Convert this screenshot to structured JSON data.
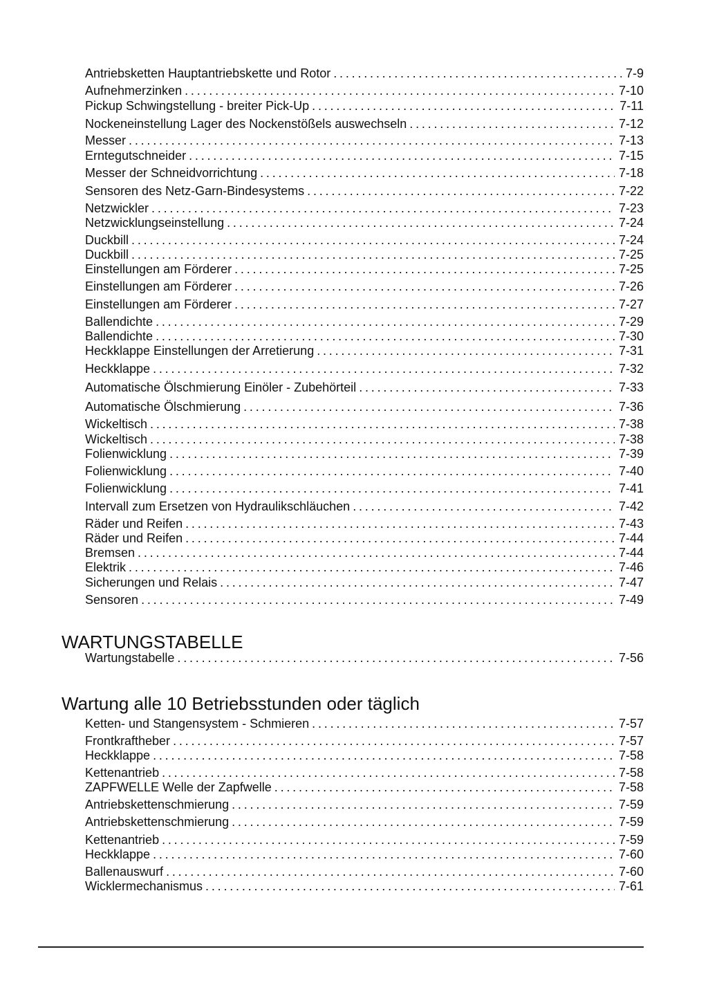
{
  "sections": [
    {
      "heading": "",
      "entries": [
        {
          "label": "Antriebsketten Hauptantriebskette und Rotor",
          "page": "7-9"
        },
        {
          "label": "Aufnehmerzinken",
          "page": "7-10"
        },
        {
          "label": "Pickup Schwingstellung - breiter Pick-Up",
          "page": "7-11"
        },
        {
          "label": "Nockeneinstellung Lager des Nockenstößels auswechseln",
          "page": "7-12"
        },
        {
          "label": "Messer",
          "page": "7-13"
        },
        {
          "label": "Erntegutschneider",
          "page": "7-15"
        },
        {
          "label": "Messer der Schneidvorrichtung",
          "page": "7-18"
        },
        {
          "label": "Sensoren des Netz-Garn-Bindesystems",
          "page": "7-22"
        },
        {
          "label": "Netzwickler",
          "page": "7-23"
        },
        {
          "label": "Netzwicklungseinstellung",
          "page": "7-24"
        },
        {
          "label": "Duckbill",
          "page": "7-24"
        },
        {
          "label": "Duckbill",
          "page": "7-25"
        },
        {
          "label": "Einstellungen am Förderer",
          "page": "7-25"
        },
        {
          "label": "Einstellungen am Förderer",
          "page": "7-26"
        },
        {
          "label": "Einstellungen am Förderer",
          "page": "7-27"
        },
        {
          "label": "Ballendichte",
          "page": "7-29"
        },
        {
          "label": "Ballendichte",
          "page": "7-30"
        },
        {
          "label": "Heckklappe Einstellungen der Arretierung",
          "page": "7-31"
        },
        {
          "label": "Heckklappe",
          "page": "7-32"
        },
        {
          "label": "Automatische Ölschmierung Einöler - Zubehörteil",
          "page": "7-33"
        },
        {
          "label": "Automatische Ölschmierung",
          "page": "7-36"
        },
        {
          "label": "Wickeltisch",
          "page": "7-38"
        },
        {
          "label": "Wickeltisch",
          "page": "7-38"
        },
        {
          "label": "Folienwicklung",
          "page": "7-39"
        },
        {
          "label": "Folienwicklung",
          "page": "7-40"
        },
        {
          "label": "Folienwicklung",
          "page": "7-41"
        },
        {
          "label": "Intervall zum Ersetzen von Hydraulikschläuchen",
          "page": "7-42"
        },
        {
          "label": "Räder und Reifen",
          "page": "7-43"
        },
        {
          "label": "Räder und Reifen",
          "page": "7-44"
        },
        {
          "label": "Bremsen",
          "page": "7-44"
        },
        {
          "label": "Elektrik",
          "page": "7-46"
        },
        {
          "label": "Sicherungen und Relais",
          "page": "7-47"
        },
        {
          "label": "Sensoren",
          "page": "7-49"
        }
      ]
    },
    {
      "heading": "WARTUNGSTABELLE",
      "entries": [
        {
          "label": "Wartungstabelle",
          "page": "7-56"
        }
      ]
    },
    {
      "heading": "Wartung alle 10 Betriebsstunden oder täglich",
      "entries": [
        {
          "label": "Ketten- und Stangensystem - Schmieren",
          "page": "7-57"
        },
        {
          "label": "Frontkraftheber",
          "page": "7-57"
        },
        {
          "label": "Heckklappe",
          "page": "7-58"
        },
        {
          "label": "Kettenantrieb",
          "page": "7-58"
        },
        {
          "label": "ZAPFWELLE Welle der Zapfwelle",
          "page": "7-58"
        },
        {
          "label": "Antriebskettenschmierung",
          "page": "7-59"
        },
        {
          "label": "Antriebskettenschmierung",
          "page": "7-59"
        },
        {
          "label": "Kettenantrieb",
          "page": "7-59"
        },
        {
          "label": "Heckklappe",
          "page": "7-60"
        },
        {
          "label": "Ballenauswurf",
          "page": "7-60"
        },
        {
          "label": "Wicklermechanismus",
          "page": "7-61"
        }
      ]
    }
  ]
}
